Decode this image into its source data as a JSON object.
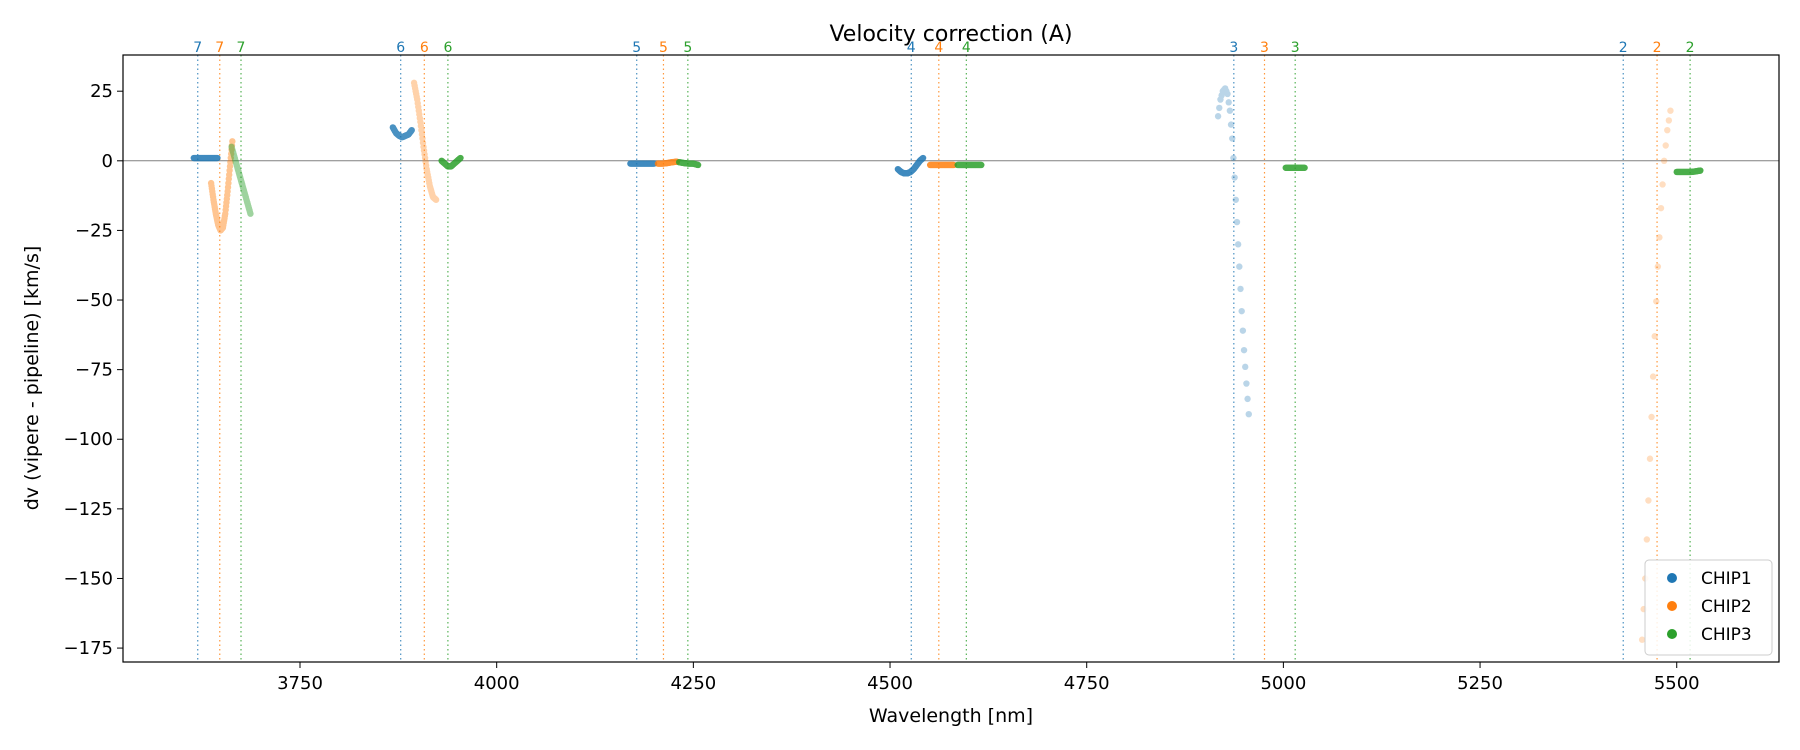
{
  "chart_data": {
    "type": "scatter",
    "title": "Velocity correction (A)",
    "xlabel": "Wavelength [nm]",
    "ylabel": "dv (vipere - pipeline) [km/s]",
    "xlim": [
      3525,
      5630
    ],
    "ylim": [
      -180,
      38
    ],
    "xticks": [
      3750,
      4000,
      4250,
      4500,
      4750,
      5000,
      5250,
      5500
    ],
    "yticks": [
      25,
      0,
      -25,
      -50,
      -75,
      -100,
      -125,
      -150,
      -175
    ],
    "zero_line": 0,
    "legend": {
      "position": "bottom-right",
      "entries": [
        "CHIP1",
        "CHIP2",
        "CHIP3"
      ]
    },
    "colors": {
      "CHIP1": "#1f77b4",
      "CHIP2": "#ff7f0e",
      "CHIP3": "#2ca02c"
    },
    "order_markers": [
      {
        "order": "7",
        "chip": "CHIP1",
        "x": 3620
      },
      {
        "order": "7",
        "chip": "CHIP2",
        "x": 3648
      },
      {
        "order": "7",
        "chip": "CHIP3",
        "x": 3675
      },
      {
        "order": "6",
        "chip": "CHIP1",
        "x": 3878
      },
      {
        "order": "6",
        "chip": "CHIP2",
        "x": 3908
      },
      {
        "order": "6",
        "chip": "CHIP3",
        "x": 3938
      },
      {
        "order": "5",
        "chip": "CHIP1",
        "x": 4178
      },
      {
        "order": "5",
        "chip": "CHIP2",
        "x": 4212
      },
      {
        "order": "5",
        "chip": "CHIP3",
        "x": 4243
      },
      {
        "order": "4",
        "chip": "CHIP1",
        "x": 4527
      },
      {
        "order": "4",
        "chip": "CHIP2",
        "x": 4562
      },
      {
        "order": "4",
        "chip": "CHIP3",
        "x": 4597
      },
      {
        "order": "3",
        "chip": "CHIP1",
        "x": 4937
      },
      {
        "order": "3",
        "chip": "CHIP2",
        "x": 4976
      },
      {
        "order": "3",
        "chip": "CHIP3",
        "x": 5015
      },
      {
        "order": "2",
        "chip": "CHIP1",
        "x": 5432
      },
      {
        "order": "2",
        "chip": "CHIP2",
        "x": 5475
      },
      {
        "order": "2",
        "chip": "CHIP3",
        "x": 5517
      }
    ],
    "series": [
      {
        "name": "CHIP1",
        "order": "7",
        "alpha": 0.85,
        "x": [
          3615,
          3620,
          3625,
          3630,
          3635,
          3640,
          3645
        ],
        "y": [
          1,
          1,
          1,
          1,
          1,
          1,
          1
        ]
      },
      {
        "name": "CHIP2",
        "order": "7",
        "alpha": 0.45,
        "x": [
          3637,
          3640,
          3643,
          3646,
          3649,
          3652,
          3655,
          3658,
          3661,
          3664
        ],
        "y": [
          -8,
          -14,
          -19,
          -23,
          -25,
          -24,
          -19,
          -11,
          -2,
          7
        ]
      },
      {
        "name": "CHIP3",
        "order": "7",
        "alpha": 0.45,
        "x": [
          3663,
          3667,
          3671,
          3675,
          3679,
          3683,
          3687
        ],
        "y": [
          5,
          1,
          -3,
          -7,
          -11,
          -15,
          -19
        ]
      },
      {
        "name": "CHIP1",
        "order": "6",
        "alpha": 0.8,
        "x": [
          3868,
          3872,
          3876,
          3880,
          3884,
          3888,
          3892
        ],
        "y": [
          12,
          10,
          9,
          8.5,
          9,
          9.5,
          11
        ]
      },
      {
        "name": "CHIP2",
        "order": "6",
        "alpha": 0.35,
        "x": [
          3895,
          3899,
          3903,
          3907,
          3911,
          3915,
          3919,
          3923
        ],
        "y": [
          28,
          22,
          14,
          5,
          -3,
          -9,
          -13,
          -14
        ]
      },
      {
        "name": "CHIP3",
        "order": "6",
        "alpha": 0.85,
        "x": [
          3930,
          3934,
          3938,
          3942,
          3946,
          3950,
          3954
        ],
        "y": [
          0,
          -1,
          -2,
          -2,
          -1,
          0,
          1
        ]
      },
      {
        "name": "CHIP1",
        "order": "5",
        "alpha": 0.85,
        "x": [
          4170,
          4176,
          4182,
          4188,
          4194,
          4200
        ],
        "y": [
          -1,
          -1,
          -1,
          -1,
          -1,
          -1
        ]
      },
      {
        "name": "CHIP2",
        "order": "5",
        "alpha": 0.85,
        "x": [
          4205,
          4211,
          4217,
          4223,
          4229
        ],
        "y": [
          -1,
          -1,
          -0.8,
          -0.5,
          -0.3
        ]
      },
      {
        "name": "CHIP3",
        "order": "5",
        "alpha": 0.85,
        "x": [
          4232,
          4238,
          4244,
          4250,
          4256
        ],
        "y": [
          -0.5,
          -0.8,
          -1,
          -1,
          -1.5
        ]
      },
      {
        "name": "CHIP1",
        "order": "4",
        "alpha": 0.85,
        "x": [
          4510,
          4514,
          4518,
          4522,
          4526,
          4530,
          4534,
          4538,
          4542
        ],
        "y": [
          -3,
          -4,
          -4.5,
          -4.5,
          -4,
          -3,
          -1.5,
          0,
          1
        ]
      },
      {
        "name": "CHIP2",
        "order": "4",
        "alpha": 0.85,
        "x": [
          4551,
          4557,
          4563,
          4569,
          4575,
          4581
        ],
        "y": [
          -1.5,
          -1.5,
          -1.5,
          -1.5,
          -1.5,
          -1.5
        ]
      },
      {
        "name": "CHIP3",
        "order": "4",
        "alpha": 0.85,
        "x": [
          4586,
          4592,
          4598,
          4604,
          4610,
          4616
        ],
        "y": [
          -1.5,
          -1.5,
          -1.5,
          -1.5,
          -1.5,
          -1.5
        ]
      },
      {
        "name": "CHIP1",
        "order": "3",
        "alpha": 0.3,
        "x": [
          4917,
          4920,
          4923,
          4926,
          4929,
          4932,
          4935,
          4938,
          4941,
          4944,
          4947,
          4950,
          4953,
          4956
        ],
        "y": [
          16,
          22,
          25,
          26,
          24,
          18,
          8,
          -6,
          -22,
          -38,
          -54,
          -68,
          -80,
          -91
        ]
      },
      {
        "name": "CHIP3",
        "order": "3",
        "alpha": 0.85,
        "x": [
          5003,
          5009,
          5015,
          5021,
          5027
        ],
        "y": [
          -2.5,
          -2.5,
          -2.5,
          -2.5,
          -2.5
        ]
      },
      {
        "name": "CHIP2",
        "order": "2",
        "alpha": 0.25,
        "x": [
          5456,
          5460,
          5464,
          5468,
          5472,
          5476,
          5480,
          5484,
          5488,
          5492
        ],
        "y": [
          -172,
          -150,
          -122,
          -92,
          -63,
          -38,
          -17,
          0,
          11,
          18
        ]
      },
      {
        "name": "CHIP3",
        "order": "2",
        "alpha": 0.85,
        "x": [
          5500,
          5506,
          5512,
          5518,
          5524,
          5530
        ],
        "y": [
          -4,
          -4,
          -4,
          -4,
          -3.8,
          -3.5
        ]
      }
    ]
  }
}
